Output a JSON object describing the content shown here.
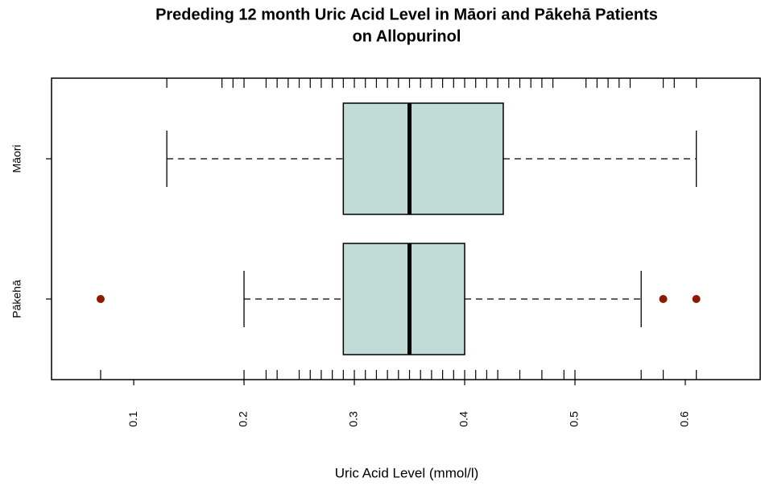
{
  "chart_data": {
    "type": "boxplot",
    "title": [
      "Prededing 12 month Uric Acid Level in Māori and Pākehā Patients",
      "on Allopurinol"
    ],
    "xlabel": "Uric Acid Level (mmol/l)",
    "xlim": [
      0.0255,
      0.6679
    ],
    "xticks": [
      0.1,
      0.2,
      0.3,
      0.4,
      0.5,
      0.6
    ],
    "box_color": "#c1dbd7",
    "outlier_color": "#8b1a00",
    "groups": [
      {
        "name": "Māori",
        "whislo": 0.13,
        "q1": 0.29,
        "med": 0.35,
        "q3": 0.435,
        "whishi": 0.61,
        "outliers": [],
        "rug": [
          0.13,
          0.18,
          0.19,
          0.2,
          0.22,
          0.23,
          0.24,
          0.25,
          0.26,
          0.27,
          0.28,
          0.29,
          0.3,
          0.31,
          0.32,
          0.33,
          0.34,
          0.35,
          0.36,
          0.37,
          0.38,
          0.39,
          0.4,
          0.41,
          0.42,
          0.43,
          0.44,
          0.45,
          0.46,
          0.47,
          0.48,
          0.51,
          0.52,
          0.53,
          0.54,
          0.55,
          0.58,
          0.59,
          0.61
        ]
      },
      {
        "name": "Pākehā",
        "whislo": 0.2,
        "q1": 0.29,
        "med": 0.35,
        "q3": 0.4,
        "whishi": 0.56,
        "outliers": [
          0.07,
          0.58,
          0.61
        ],
        "rug": [
          0.07,
          0.2,
          0.22,
          0.23,
          0.25,
          0.26,
          0.27,
          0.28,
          0.29,
          0.3,
          0.31,
          0.32,
          0.33,
          0.34,
          0.35,
          0.36,
          0.37,
          0.38,
          0.39,
          0.4,
          0.41,
          0.42,
          0.43,
          0.45,
          0.47,
          0.49,
          0.5,
          0.56,
          0.58,
          0.61
        ]
      }
    ]
  }
}
